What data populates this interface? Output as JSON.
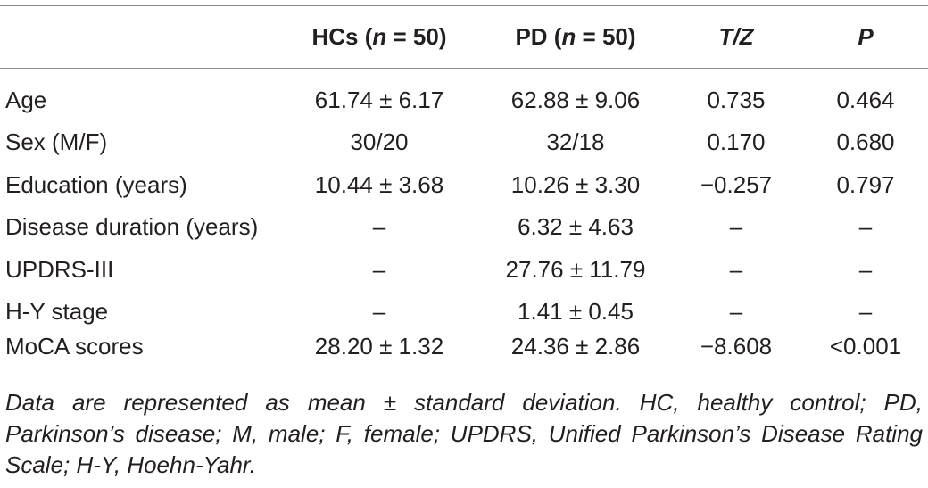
{
  "table": {
    "headers": {
      "hc_prefix": "HCs (",
      "hc_n": "n",
      "hc_suffix": " = 50)",
      "pd_prefix": "PD (",
      "pd_n": "n",
      "pd_suffix": " = 50)",
      "tz": "T/Z",
      "p": "P"
    },
    "rows": [
      {
        "label": "Age",
        "hc": "61.74 ± 6.17",
        "pd": "62.88 ± 9.06",
        "tz": "0.735",
        "p": "0.464"
      },
      {
        "label": "Sex (M/F)",
        "hc": "30/20",
        "pd": "32/18",
        "tz": "0.170",
        "p": "0.680"
      },
      {
        "label": "Education (years)",
        "hc": "10.44 ± 3.68",
        "pd": "10.26 ± 3.30",
        "tz": "−0.257",
        "p": "0.797"
      },
      {
        "label": "Disease duration (years)",
        "hc": "–",
        "pd": "6.32 ± 4.63",
        "tz": "–",
        "p": "–"
      },
      {
        "label": "UPDRS-III",
        "hc": "–",
        "pd": "27.76 ± 11.79",
        "tz": "–",
        "p": "–"
      },
      {
        "label": "H-Y stage",
        "hc": "–",
        "pd": "1.41 ± 0.45",
        "tz": "–",
        "p": "–"
      },
      {
        "label": "MoCA scores",
        "hc": "28.20 ± 1.32",
        "pd": "24.36 ± 2.86",
        "tz": "−8.608",
        "p": "<0.001"
      }
    ]
  },
  "footnote": "Data are represented as mean ± standard deviation. HC, healthy control; PD, Parkinson’s disease; M, male; F, female; UPDRS, Unified Parkinson’s Disease Rating Scale; H-Y, Hoehn-Yahr."
}
